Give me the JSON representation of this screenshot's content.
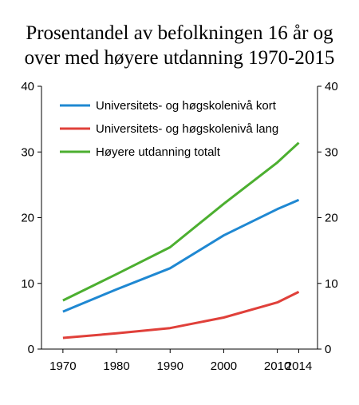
{
  "chart_data": {
    "type": "line",
    "title_line1": "Prosentandel av befolkningen 16 år og",
    "title_line2": "over med høyere utdanning 1970-2015",
    "x": [
      1970,
      1980,
      1990,
      2000,
      2010,
      2014
    ],
    "x_tick_labels": [
      "1970",
      "1980",
      "1990",
      "2000",
      "2010",
      "2014"
    ],
    "y_ticks": [
      "0",
      "10",
      "20",
      "30",
      "40"
    ],
    "ylim": [
      0,
      40
    ],
    "legend_position": "top-left",
    "grid": false,
    "series": [
      {
        "name": "Universitets- og høgskolenivå kort",
        "color": "#1f88d2",
        "values": [
          5.7,
          9.1,
          12.3,
          17.3,
          21.3,
          22.7
        ]
      },
      {
        "name": "Universitets- og høgskolenivå lang",
        "color": "#e0403a",
        "values": [
          1.7,
          2.4,
          3.2,
          4.8,
          7.1,
          8.7
        ]
      },
      {
        "name": "Høyere utdanning totalt",
        "color": "#4caf30",
        "values": [
          7.4,
          11.4,
          15.5,
          22.1,
          28.4,
          31.4
        ]
      }
    ]
  }
}
